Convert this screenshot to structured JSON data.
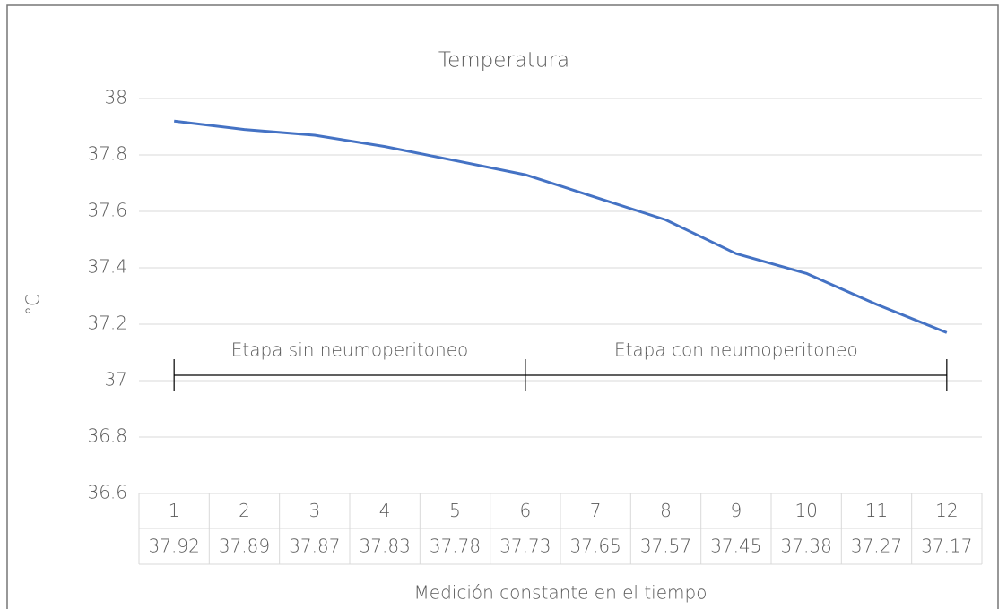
{
  "chart_data": {
    "type": "line",
    "title": "Temperatura",
    "y_label": "°C",
    "x_label": "Medición constante en el tiempo",
    "categories": [
      "1",
      "2",
      "3",
      "4",
      "5",
      "6",
      "7",
      "8",
      "9",
      "10",
      "11",
      "12"
    ],
    "series": [
      {
        "name": "Temperatura",
        "color": "#4472c4",
        "values": [
          37.92,
          37.89,
          37.87,
          37.83,
          37.78,
          37.73,
          37.65,
          37.57,
          37.45,
          37.38,
          37.27,
          37.17
        ]
      }
    ],
    "ylim": [
      36.6,
      38
    ],
    "yticks": [
      36.6,
      36.8,
      37,
      37.2,
      37.4,
      37.6,
      37.8,
      38
    ],
    "grid": true,
    "annotations": [
      {
        "text": "Etapa sin neumoperitoneo"
      },
      {
        "text": "Etapa con neumoperitoneo"
      }
    ]
  }
}
